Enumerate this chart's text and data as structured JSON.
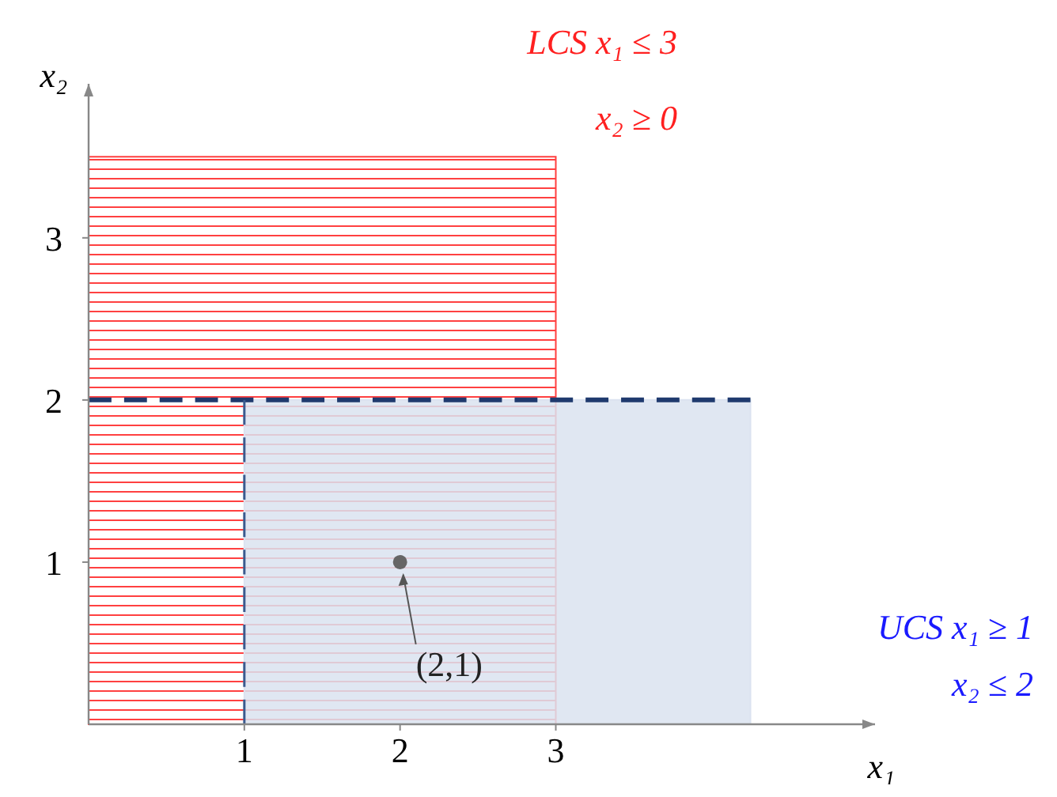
{
  "chart_data": {
    "type": "area",
    "xlabel": "x₁",
    "ylabel": "x₂",
    "xlim": [
      0,
      5.05
    ],
    "ylim": [
      0,
      3.95
    ],
    "xticks": [
      1,
      2,
      3
    ],
    "yticks": [
      1,
      2,
      3
    ],
    "grid": false,
    "series": [
      {
        "color": "#ff4040",
        "x": [
          0,
          3
        ],
        "values": [
          3.5,
          3.5
        ]
      },
      {
        "color": "#dbe3f0",
        "x": [
          1,
          4.25
        ],
        "values": [
          2,
          2
        ]
      },
      {
        "type": "line",
        "color": "#1f3a6e",
        "line_style": "dashed",
        "x": [
          0,
          4.25
        ],
        "values": [
          2,
          2
        ]
      },
      {
        "type": "line",
        "color": "#3a5a8e",
        "line_style": "dashed",
        "x": [
          1,
          1
        ],
        "values": [
          0,
          2
        ]
      },
      {
        "type": "scatter",
        "color": "#666666",
        "marker": "circle",
        "x": [
          2
        ],
        "values": [
          1
        ]
      }
    ],
    "annotations": [
      {
        "text": "(2,1)",
        "x": 2,
        "y": 1
      },
      "LCS x₁ ≤ 3",
      "x₂ ≥ 0",
      "UCS x₁ ≥ 1",
      "x₂ ≤ 2"
    ]
  }
}
